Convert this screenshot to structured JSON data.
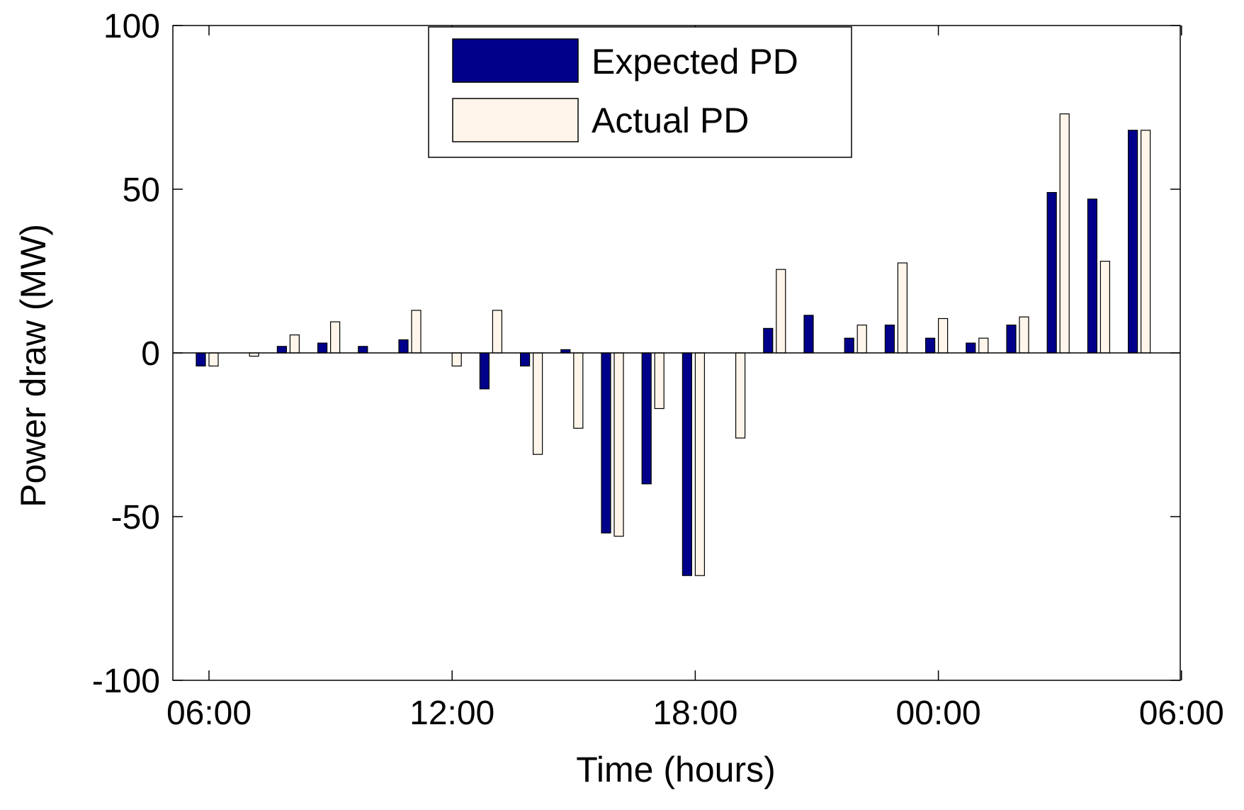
{
  "chart_data": {
    "type": "bar",
    "xlabel": "Time (hours)",
    "ylabel": "Power draw (MW)",
    "ylim": [
      -100,
      100
    ],
    "yticks": [
      -100,
      -50,
      0,
      50,
      100
    ],
    "ytick_labels": [
      "-100",
      "-50",
      "0",
      "50",
      "100"
    ],
    "xlim": [
      5.0,
      29.9
    ],
    "xticks": [
      6,
      12,
      18,
      24,
      30
    ],
    "xtick_labels": [
      "06:00",
      "12:00",
      "18:00",
      "00:00",
      "06:00"
    ],
    "x": [
      6,
      7,
      8,
      9,
      10,
      11,
      12,
      13,
      14,
      15,
      16,
      17,
      18,
      19,
      20,
      21,
      22,
      23,
      24,
      25,
      26,
      27,
      28,
      29
    ],
    "series": [
      {
        "name": "Expected PD",
        "color": "#00008B",
        "values": [
          -4,
          0,
          2,
          3,
          2,
          4,
          0,
          -11,
          -4,
          1,
          -55,
          -40,
          -68,
          0,
          7.5,
          11.5,
          4.5,
          8.5,
          4.5,
          3,
          8.5,
          49,
          47,
          68
        ]
      },
      {
        "name": "Actual PD",
        "color": "#FFF5EA",
        "values": [
          -4,
          -1,
          5.5,
          9.5,
          0,
          13,
          -4,
          13,
          -31,
          -23,
          -56,
          -17,
          -68,
          -26,
          25.5,
          0,
          8.5,
          27.5,
          10.5,
          4.5,
          11,
          73,
          28,
          68
        ]
      }
    ],
    "legend": {
      "position": "top-center"
    },
    "grid": false
  }
}
